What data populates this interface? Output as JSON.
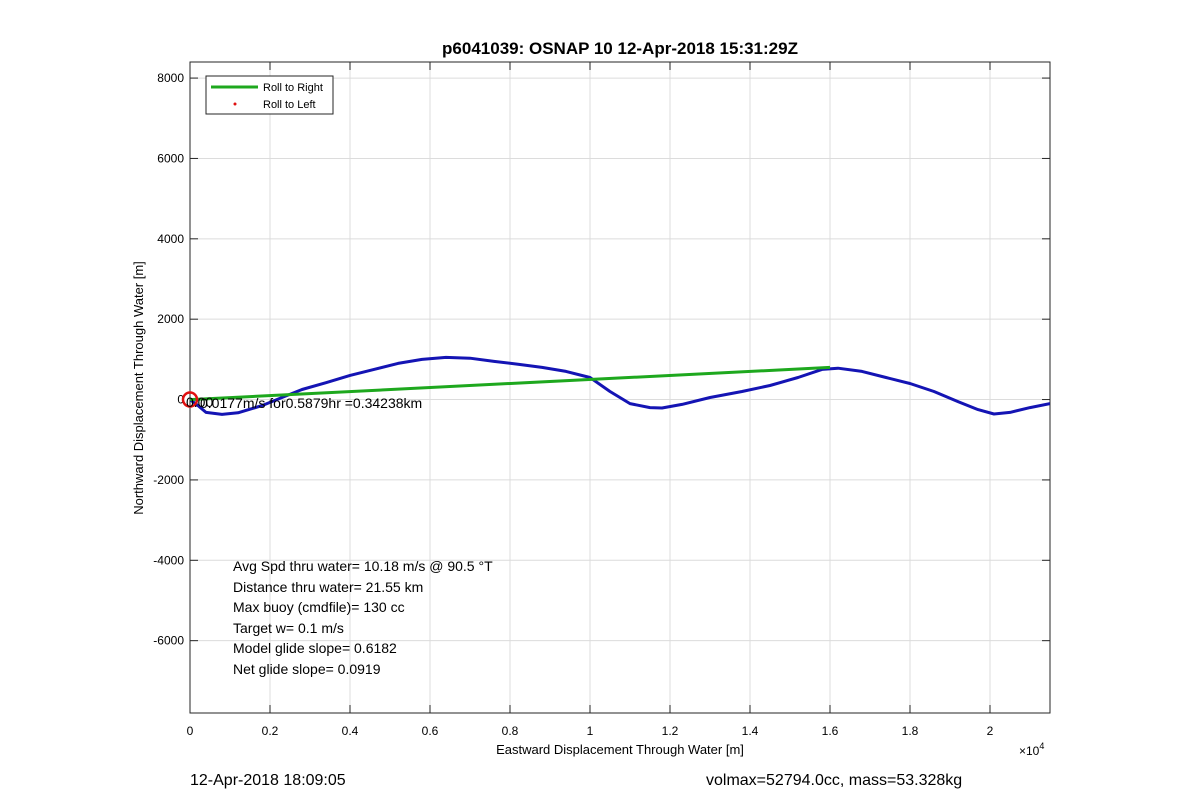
{
  "chart_data": {
    "type": "line",
    "title": "p6041039: OSNAP 10 12-Apr-2018 15:31:29Z",
    "xlabel": "Eastward Displacement Through Water [m]",
    "ylabel": "Northward Displacement Through Water [m]",
    "x_multiplier": "×10",
    "x_multiplier_exp": "4",
    "xlim": [
      0,
      21500
    ],
    "ylim": [
      -7800,
      8400
    ],
    "x_ticks": [
      0,
      2000,
      4000,
      6000,
      8000,
      10000,
      12000,
      14000,
      16000,
      18000,
      20000
    ],
    "x_tick_labels": [
      "0",
      "0.2",
      "0.4",
      "0.6",
      "0.8",
      "1",
      "1.2",
      "1.4",
      "1.6",
      "1.8",
      "2"
    ],
    "y_ticks": [
      8000,
      6000,
      4000,
      2000,
      0,
      -2000,
      -4000,
      -6000
    ],
    "y_tick_labels": [
      "8000",
      "6000",
      "4000",
      "2000",
      "0",
      "-2000",
      "-4000",
      "-6000"
    ],
    "grid": true,
    "legend_position": "top-left",
    "legend": [
      {
        "label": "Roll to Right",
        "color": "#1ea81e",
        "style": "line"
      },
      {
        "label": "Roll to Left",
        "color": "#e01010",
        "style": "dot"
      }
    ],
    "series": [
      {
        "role": "displacement-track",
        "color": "#1414b4",
        "x": [
          0,
          200,
          400,
          800,
          1200,
          1800,
          2300,
          2800,
          3400,
          4000,
          4600,
          5200,
          5800,
          6400,
          7000,
          7600,
          8200,
          8800,
          9400,
          10000,
          10500,
          11000,
          11500,
          11800,
          12300,
          13000,
          13800,
          14500,
          15200,
          15800,
          16200,
          16800,
          17400,
          18000,
          18600,
          19200,
          19700,
          20100,
          20500,
          21000,
          21500
        ],
        "y": [
          0,
          -150,
          -320,
          -370,
          -330,
          -150,
          50,
          250,
          420,
          600,
          750,
          900,
          1000,
          1050,
          1030,
          950,
          880,
          800,
          700,
          550,
          200,
          -100,
          -200,
          -210,
          -120,
          50,
          200,
          350,
          550,
          750,
          780,
          700,
          550,
          400,
          200,
          -50,
          -250,
          -360,
          -320,
          -200,
          -100
        ]
      },
      {
        "role": "net-displacement",
        "color": "#1ea81e",
        "x": [
          0,
          16000
        ],
        "y": [
          0,
          800
        ]
      }
    ],
    "start_marker": {
      "x": 0,
      "y": 0,
      "color": "#e01010"
    },
    "current_annotation": "0.0177m/s for0.5879hr =0.34238km",
    "overlap_label": "0.00",
    "stats_lines": [
      "Avg Spd thru water= 10.18 m/s @  90.5 °T",
      "Distance thru water= 21.55 km",
      "Max buoy (cmdfile)= 130 cc",
      "Target w= 0.1 m/s",
      "Model glide slope= 0.6182",
      "Net glide slope= 0.0919"
    ]
  },
  "footer": {
    "left": "12-Apr-2018 18:09:05",
    "right": "volmax=52794.0cc, mass=53.328kg"
  }
}
